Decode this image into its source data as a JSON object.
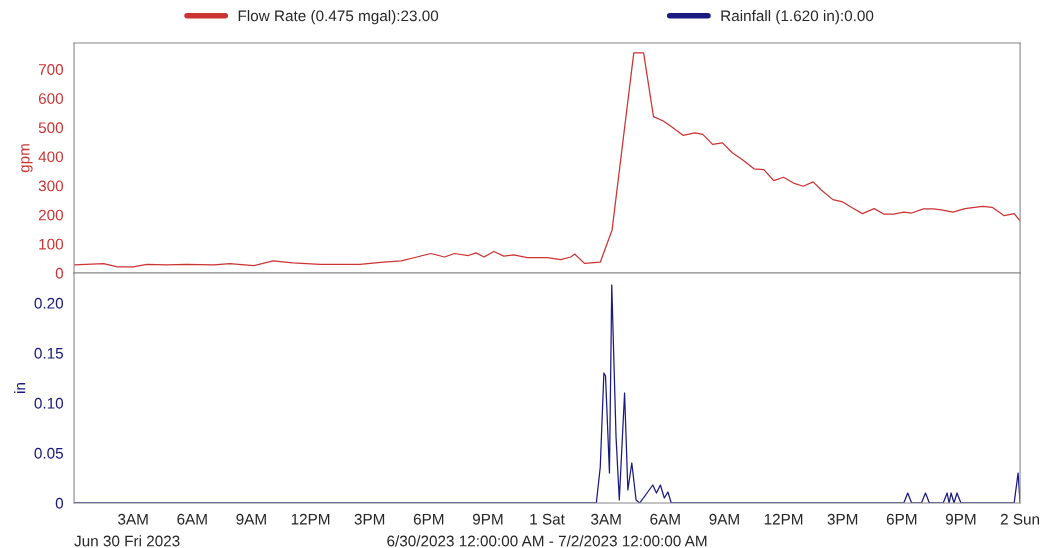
{
  "chart_data": [
    {
      "type": "line",
      "ylabel": "gpm",
      "legend": "top",
      "tick_labels": "y",
      "xlim": [
        "2023-06-30T00:00",
        "2023-07-02T00:00"
      ],
      "ylim": [
        0,
        790
      ],
      "yticks": [
        0,
        100,
        200,
        300,
        400,
        500,
        600,
        700
      ],
      "series": [
        {
          "name": "Flow Rate (0.475 mgal):23.00",
          "color": "#cc3333",
          "x": [
            "2023-06-30T00:00",
            "2023-06-30T01:30",
            "2023-06-30T02:12",
            "2023-06-30T03:00",
            "2023-06-30T03:42",
            "2023-06-30T04:42",
            "2023-06-30T05:42",
            "2023-06-30T07:06",
            "2023-06-30T07:54",
            "2023-06-30T09:06",
            "2023-06-30T10:06",
            "2023-06-30T11:06",
            "2023-06-30T12:30",
            "2023-06-30T13:54",
            "2023-06-30T14:30",
            "2023-06-30T15:42",
            "2023-06-30T16:36",
            "2023-06-30T17:24",
            "2023-06-30T18:06",
            "2023-06-30T18:48",
            "2023-06-30T19:18",
            "2023-06-30T20:00",
            "2023-06-30T20:24",
            "2023-06-30T20:48",
            "2023-06-30T21:18",
            "2023-06-30T21:48",
            "2023-06-30T22:18",
            "2023-06-30T23:00",
            "2023-07-01T00:00",
            "2023-07-01T00:42",
            "2023-07-01T01:12",
            "2023-07-01T01:24",
            "2023-07-01T01:54",
            "2023-07-01T02:42",
            "2023-07-01T03:18",
            "2023-07-01T04:24",
            "2023-07-01T04:54",
            "2023-07-01T05:24",
            "2023-07-01T05:54",
            "2023-07-01T06:18",
            "2023-07-01T06:54",
            "2023-07-01T07:30",
            "2023-07-01T07:54",
            "2023-07-01T08:24",
            "2023-07-01T08:54",
            "2023-07-01T09:24",
            "2023-07-01T09:54",
            "2023-07-01T10:30",
            "2023-07-01T11:00",
            "2023-07-01T11:30",
            "2023-07-01T12:00",
            "2023-07-01T12:30",
            "2023-07-01T13:00",
            "2023-07-01T13:30",
            "2023-07-01T13:54",
            "2023-07-01T14:30",
            "2023-07-01T15:00",
            "2023-07-01T15:30",
            "2023-07-01T16:00",
            "2023-07-01T16:36",
            "2023-07-01T17:06",
            "2023-07-01T17:36",
            "2023-07-01T18:06",
            "2023-07-01T18:30",
            "2023-07-01T19:06",
            "2023-07-01T19:36",
            "2023-07-01T20:00",
            "2023-07-01T20:36",
            "2023-07-01T21:12",
            "2023-07-01T22:06",
            "2023-07-01T22:36",
            "2023-07-01T23:12",
            "2023-07-01T23:42",
            "2023-07-02T00:00"
          ],
          "values": [
            28,
            32,
            21,
            21,
            30,
            28,
            30,
            28,
            32,
            25,
            42,
            35,
            30,
            30,
            30,
            37,
            42,
            55,
            67,
            55,
            67,
            60,
            69,
            55,
            74,
            58,
            62,
            53,
            53,
            46,
            55,
            65,
            33,
            37,
            148,
            756,
            756,
            537,
            522,
            503,
            473,
            481,
            476,
            442,
            447,
            413,
            390,
            358,
            355,
            317,
            329,
            309,
            298,
            313,
            286,
            252,
            244,
            223,
            204,
            221,
            202,
            202,
            209,
            206,
            220,
            220,
            217,
            209,
            221,
            229,
            225,
            197,
            204,
            179
          ]
        }
      ]
    },
    {
      "type": "line",
      "ylabel": "in",
      "legend": "top",
      "xlim": [
        "2023-06-30T00:00",
        "2023-07-02T00:00"
      ],
      "ylim": [
        0,
        0.23
      ],
      "yticks": [
        {
          "value": 0,
          "label": "0"
        },
        {
          "value": 0.05,
          "label": "0.05"
        },
        {
          "value": 0.1,
          "label": "0.10"
        },
        {
          "value": 0.15,
          "label": "0.15"
        },
        {
          "value": 0.2,
          "label": "0.20"
        }
      ],
      "xticks": [
        {
          "value": "2023-06-30T03:00",
          "label": "3AM"
        },
        {
          "value": "2023-06-30T06:00",
          "label": "6AM"
        },
        {
          "value": "2023-06-30T09:00",
          "label": "9AM"
        },
        {
          "value": "2023-06-30T12:00",
          "label": "12PM"
        },
        {
          "value": "2023-06-30T15:00",
          "label": "3PM"
        },
        {
          "value": "2023-06-30T18:00",
          "label": "6PM"
        },
        {
          "value": "2023-06-30T21:00",
          "label": "9PM"
        },
        {
          "value": "2023-07-01T00:00",
          "label": "1 Sat"
        },
        {
          "value": "2023-07-01T03:00",
          "label": "3AM"
        },
        {
          "value": "2023-07-01T06:00",
          "label": "6AM"
        },
        {
          "value": "2023-07-01T09:00",
          "label": "9AM"
        },
        {
          "value": "2023-07-01T12:00",
          "label": "12PM"
        },
        {
          "value": "2023-07-01T15:00",
          "label": "3PM"
        },
        {
          "value": "2023-07-01T18:00",
          "label": "6PM"
        },
        {
          "value": "2023-07-01T21:00",
          "label": "9PM"
        },
        {
          "value": "2023-07-02T00:00",
          "label": "2 Sun"
        }
      ],
      "annotations": [
        "Jun 30 Fri 2023",
        "6/30/2023 12:00:00 AM - 7/2/2023 12:00:00 AM"
      ],
      "series": [
        {
          "name": "Rainfall (1.620 in):0.00",
          "color": "#1a1a80",
          "x": [
            "2023-06-30T00:00",
            "2023-07-01T02:30",
            "2023-07-01T02:42",
            "2023-07-01T02:53",
            "2023-07-01T02:58",
            "2023-07-01T03:10",
            "2023-07-01T03:17",
            "2023-07-01T03:30",
            "2023-07-01T03:40",
            "2023-07-01T03:56",
            "2023-07-01T04:06",
            "2023-07-01T04:18",
            "2023-07-01T04:31",
            "2023-07-01T04:42",
            "2023-07-01T05:22",
            "2023-07-01T05:33",
            "2023-07-01T05:45",
            "2023-07-01T05:57",
            "2023-07-01T06:08",
            "2023-07-01T06:18",
            "2023-07-01T18:06",
            "2023-07-01T18:18",
            "2023-07-01T18:30",
            "2023-07-01T19:00",
            "2023-07-01T19:12",
            "2023-07-01T19:24",
            "2023-07-01T20:06",
            "2023-07-01T20:18",
            "2023-07-01T20:24",
            "2023-07-01T20:30",
            "2023-07-01T20:39",
            "2023-07-01T20:48",
            "2023-07-01T21:00",
            "2023-07-01T23:42",
            "2023-07-01T23:54",
            "2023-07-02T00:00"
          ],
          "values": [
            0,
            0,
            0.036,
            0.13,
            0.127,
            0.03,
            0.218,
            0.066,
            0.003,
            0.11,
            0.013,
            0.04,
            0.003,
            0,
            0.018,
            0.01,
            0.018,
            0.005,
            0.011,
            0,
            0,
            0.01,
            0,
            0,
            0.01,
            0,
            0,
            0.01,
            0,
            0.01,
            0,
            0.01,
            0,
            0,
            0.03,
            0
          ]
        }
      ]
    }
  ]
}
